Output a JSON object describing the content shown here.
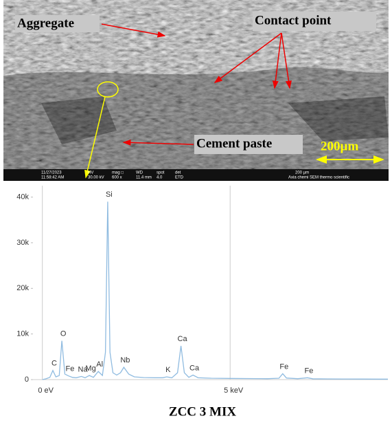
{
  "image": {
    "labels": {
      "aggregate": "Aggregate",
      "contact": "Contact point",
      "cement": "Cement paste",
      "scale": "200µm"
    },
    "info": [
      "11/27/2023",
      "11:58:42 AM",
      "HV",
      "30.00 kV",
      "mag □",
      "600 x",
      "WD",
      "11.4 mm",
      "spot",
      "4.0",
      "det",
      "ETD",
      "200 µm",
      "Axia chemi SEM  thermo scientific"
    ]
  },
  "chart_data": {
    "type": "line",
    "color": "#8fbbe0",
    "x": [
      0.0,
      0.1,
      0.2,
      0.28,
      0.36,
      0.45,
      0.52,
      0.6,
      0.7,
      0.8,
      0.9,
      1.04,
      1.14,
      1.25,
      1.36,
      1.49,
      1.6,
      1.68,
      1.74,
      1.8,
      1.88,
      1.98,
      2.08,
      2.17,
      2.3,
      2.45,
      2.7,
      3.0,
      3.2,
      3.31,
      3.45,
      3.6,
      3.69,
      3.78,
      3.9,
      4.01,
      4.15,
      4.5,
      5.0,
      5.5,
      6.0,
      6.3,
      6.4,
      6.5,
      6.8,
      7.06,
      7.2,
      7.6,
      8.0,
      8.5,
      9.0,
      9.2
    ],
    "values": [
      0,
      200,
      500,
      2000,
      600,
      900,
      8500,
      1200,
      800,
      500,
      400,
      700,
      400,
      900,
      500,
      1800,
      900,
      6000,
      39000,
      6000,
      1500,
      1000,
      1500,
      2700,
      1200,
      600,
      450,
      400,
      400,
      600,
      400,
      1500,
      7400,
      1500,
      500,
      1000,
      400,
      300,
      250,
      220,
      200,
      300,
      1300,
      350,
      200,
      400,
      180,
      150,
      130,
      120,
      100,
      100
    ],
    "xlim": [
      -0.25,
      9.2
    ],
    "xticks": [
      {
        "value": 0,
        "label": "0 eV"
      },
      {
        "value": 5,
        "label": "5 keV"
      }
    ],
    "ylim": [
      0,
      42500
    ],
    "yticks": [
      0,
      {
        "value": 10000,
        "label": "10k"
      },
      {
        "value": 20000,
        "label": "20k"
      },
      {
        "value": 30000,
        "label": "30k"
      },
      {
        "value": 40000,
        "label": "40k"
      }
    ],
    "grid": "x",
    "annotations": [
      {
        "text": "C",
        "x": 0.28
      },
      {
        "text": "O",
        "x": 0.52
      },
      {
        "text": "Fe",
        "x": 0.7
      },
      {
        "text": "Na",
        "x": 1.04
      },
      {
        "text": "Mg",
        "x": 1.25
      },
      {
        "text": "Al",
        "x": 1.49
      },
      {
        "text": "Si",
        "x": 1.74
      },
      {
        "text": "Nb",
        "x": 2.17
      },
      {
        "text": "K",
        "x": 3.31
      },
      {
        "text": "Ca",
        "x": 3.69
      },
      {
        "text": "Ca",
        "x": 4.01
      },
      {
        "text": "Fe",
        "x": 6.4
      },
      {
        "text": "Fe",
        "x": 7.06
      }
    ]
  },
  "caption": "ZCC 3 MIX"
}
